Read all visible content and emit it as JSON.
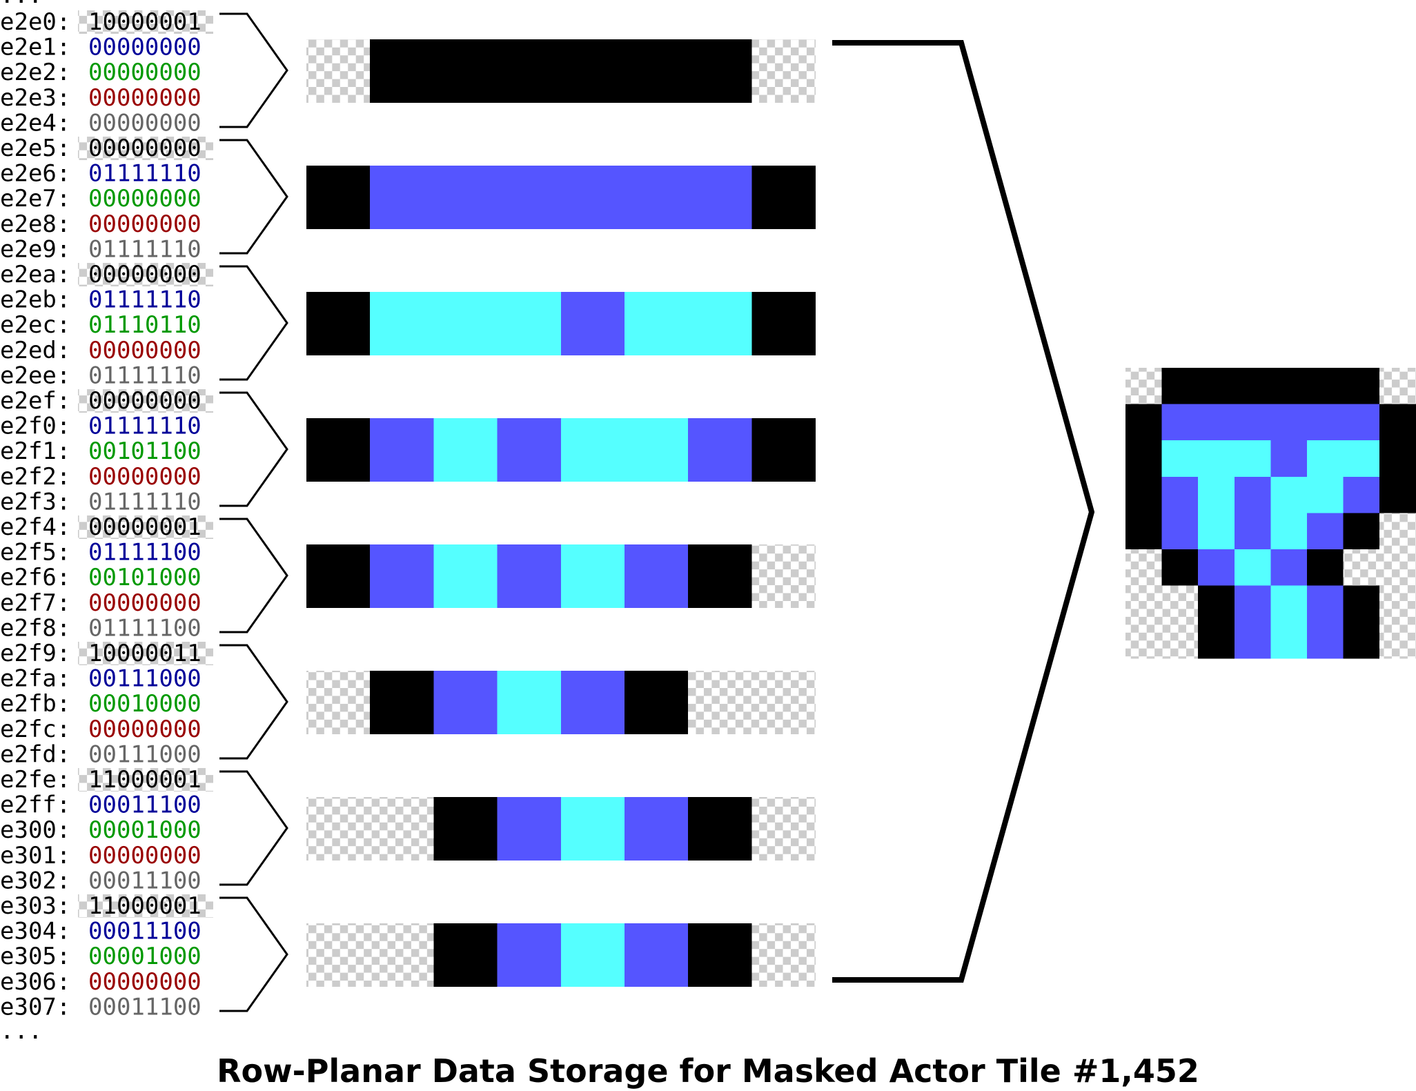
{
  "title": "Row-Planar Data Storage for Masked Actor Tile #1,452",
  "ellipsis_top": "...",
  "ellipsis_bottom": "...",
  "colors": {
    "mask": "#000000",
    "blue_plane": "#000099",
    "green_plane": "#009900",
    "red_plane": "#990000",
    "intensity_plane": "#666666",
    "pixel_black": "#000000",
    "pixel_blue": "#5555ff",
    "pixel_cyan": "#55ffff",
    "checker_light": "#ffffff",
    "checker_dark": "#cccccc",
    "line": "#000000"
  },
  "rows": [
    {
      "entries": [
        {
          "addr": "e2e0:",
          "bits": "10000001",
          "plane": "mask"
        },
        {
          "addr": "e2e1:",
          "bits": "00000000",
          "plane": "blue"
        },
        {
          "addr": "e2e2:",
          "bits": "00000000",
          "plane": "green"
        },
        {
          "addr": "e2e3:",
          "bits": "00000000",
          "plane": "red"
        },
        {
          "addr": "e2e4:",
          "bits": "00000000",
          "plane": "intensity"
        }
      ],
      "pixels": [
        "T",
        "K",
        "K",
        "K",
        "K",
        "K",
        "K",
        "T"
      ]
    },
    {
      "entries": [
        {
          "addr": "e2e5:",
          "bits": "00000000",
          "plane": "mask"
        },
        {
          "addr": "e2e6:",
          "bits": "01111110",
          "plane": "blue"
        },
        {
          "addr": "e2e7:",
          "bits": "00000000",
          "plane": "green"
        },
        {
          "addr": "e2e8:",
          "bits": "00000000",
          "plane": "red"
        },
        {
          "addr": "e2e9:",
          "bits": "01111110",
          "plane": "intensity"
        }
      ],
      "pixels": [
        "K",
        "B",
        "B",
        "B",
        "B",
        "B",
        "B",
        "K"
      ]
    },
    {
      "entries": [
        {
          "addr": "e2ea:",
          "bits": "00000000",
          "plane": "mask"
        },
        {
          "addr": "e2eb:",
          "bits": "01111110",
          "plane": "blue"
        },
        {
          "addr": "e2ec:",
          "bits": "01110110",
          "plane": "green"
        },
        {
          "addr": "e2ed:",
          "bits": "00000000",
          "plane": "red"
        },
        {
          "addr": "e2ee:",
          "bits": "01111110",
          "plane": "intensity"
        }
      ],
      "pixels": [
        "K",
        "C",
        "C",
        "C",
        "B",
        "C",
        "C",
        "K"
      ]
    },
    {
      "entries": [
        {
          "addr": "e2ef:",
          "bits": "00000000",
          "plane": "mask"
        },
        {
          "addr": "e2f0:",
          "bits": "01111110",
          "plane": "blue"
        },
        {
          "addr": "e2f1:",
          "bits": "00101100",
          "plane": "green"
        },
        {
          "addr": "e2f2:",
          "bits": "00000000",
          "plane": "red"
        },
        {
          "addr": "e2f3:",
          "bits": "01111110",
          "plane": "intensity"
        }
      ],
      "pixels": [
        "K",
        "B",
        "C",
        "B",
        "C",
        "C",
        "B",
        "K"
      ]
    },
    {
      "entries": [
        {
          "addr": "e2f4:",
          "bits": "00000001",
          "plane": "mask"
        },
        {
          "addr": "e2f5:",
          "bits": "01111100",
          "plane": "blue"
        },
        {
          "addr": "e2f6:",
          "bits": "00101000",
          "plane": "green"
        },
        {
          "addr": "e2f7:",
          "bits": "00000000",
          "plane": "red"
        },
        {
          "addr": "e2f8:",
          "bits": "01111100",
          "plane": "intensity"
        }
      ],
      "pixels": [
        "K",
        "B",
        "C",
        "B",
        "C",
        "B",
        "K",
        "T"
      ]
    },
    {
      "entries": [
        {
          "addr": "e2f9:",
          "bits": "10000011",
          "plane": "mask"
        },
        {
          "addr": "e2fa:",
          "bits": "00111000",
          "plane": "blue"
        },
        {
          "addr": "e2fb:",
          "bits": "00010000",
          "plane": "green"
        },
        {
          "addr": "e2fc:",
          "bits": "00000000",
          "plane": "red"
        },
        {
          "addr": "e2fd:",
          "bits": "00111000",
          "plane": "intensity"
        }
      ],
      "pixels": [
        "T",
        "K",
        "B",
        "C",
        "B",
        "K",
        "T",
        "T"
      ]
    },
    {
      "entries": [
        {
          "addr": "e2fe:",
          "bits": "11000001",
          "plane": "mask"
        },
        {
          "addr": "e2ff:",
          "bits": "00011100",
          "plane": "blue"
        },
        {
          "addr": "e300:",
          "bits": "00001000",
          "plane": "green"
        },
        {
          "addr": "e301:",
          "bits": "00000000",
          "plane": "red"
        },
        {
          "addr": "e302:",
          "bits": "00011100",
          "plane": "intensity"
        }
      ],
      "pixels": [
        "T",
        "T",
        "K",
        "B",
        "C",
        "B",
        "K",
        "T"
      ]
    },
    {
      "entries": [
        {
          "addr": "e303:",
          "bits": "11000001",
          "plane": "mask"
        },
        {
          "addr": "e304:",
          "bits": "00011100",
          "plane": "blue"
        },
        {
          "addr": "e305:",
          "bits": "00001000",
          "plane": "green"
        },
        {
          "addr": "e306:",
          "bits": "00000000",
          "plane": "red"
        },
        {
          "addr": "e307:",
          "bits": "00011100",
          "plane": "intensity"
        }
      ],
      "pixels": [
        "T",
        "T",
        "K",
        "B",
        "C",
        "B",
        "K",
        "T"
      ]
    }
  ]
}
